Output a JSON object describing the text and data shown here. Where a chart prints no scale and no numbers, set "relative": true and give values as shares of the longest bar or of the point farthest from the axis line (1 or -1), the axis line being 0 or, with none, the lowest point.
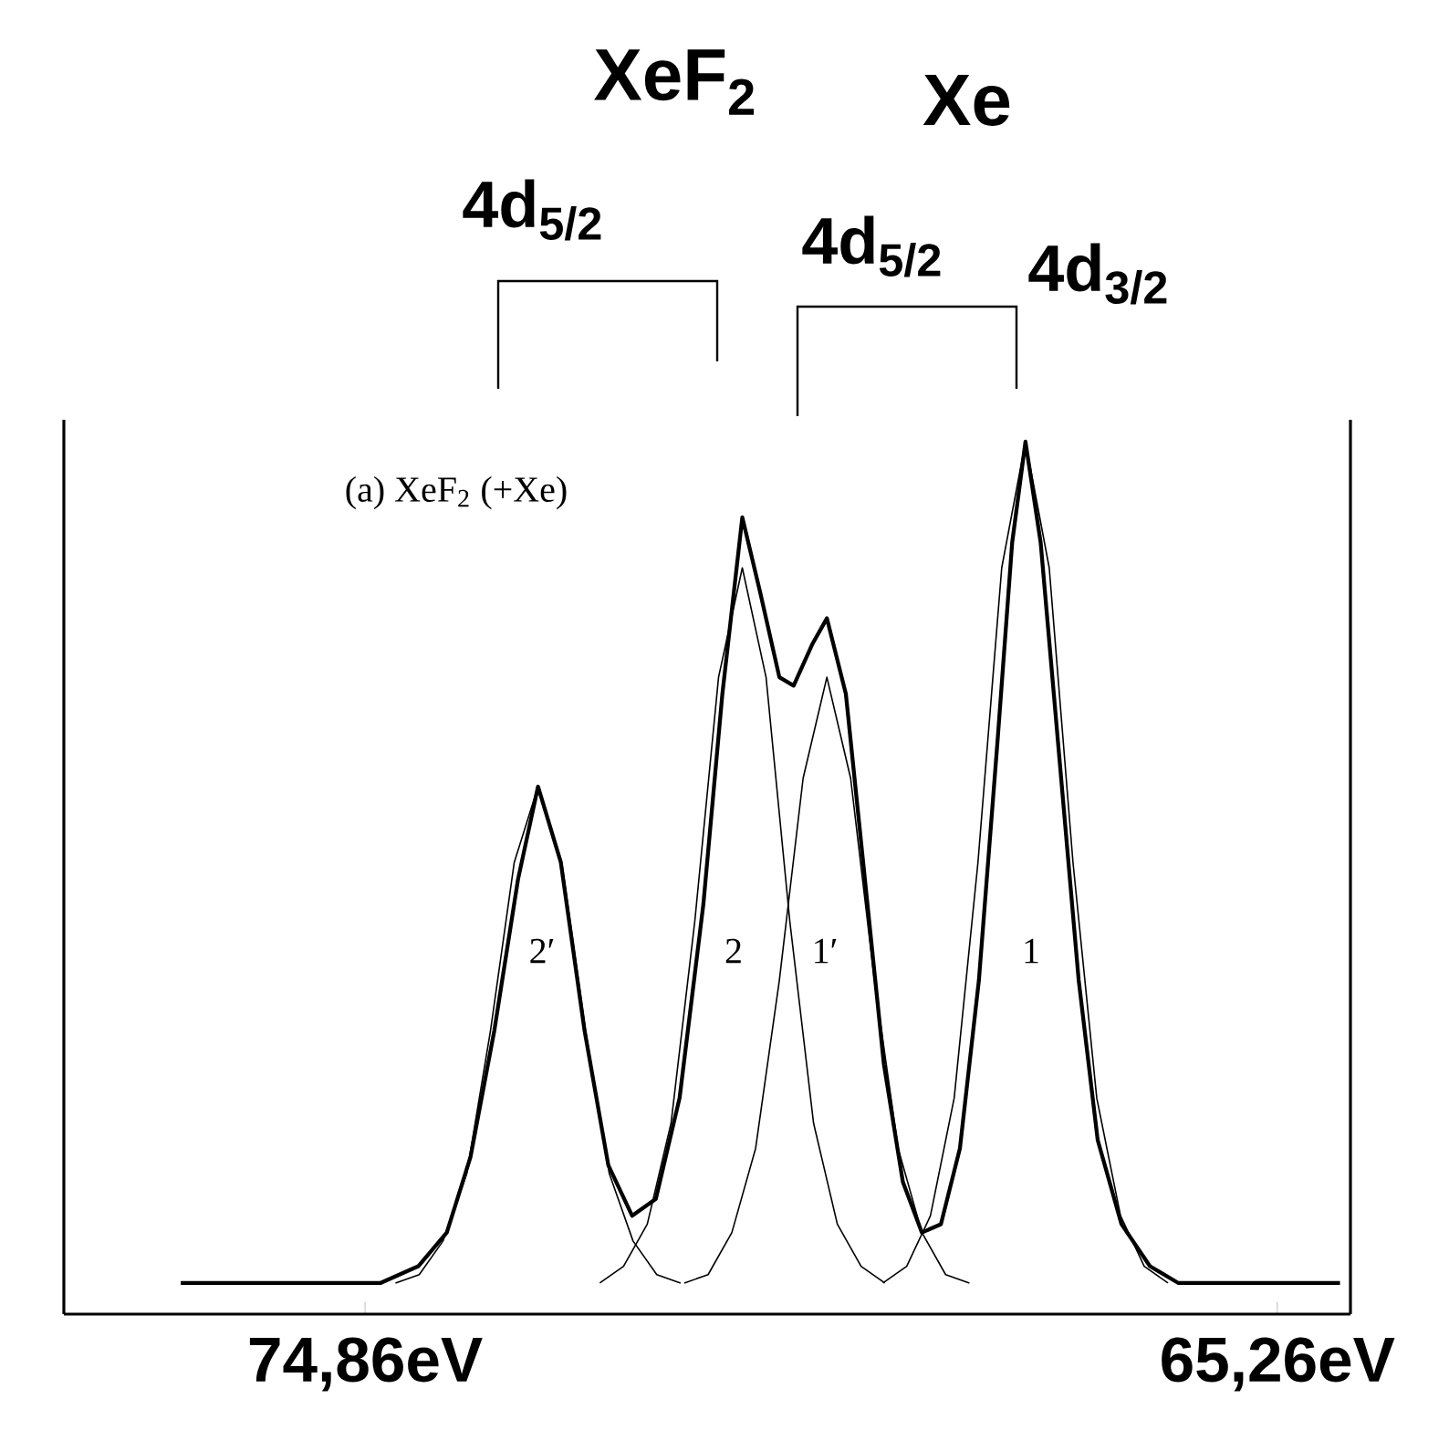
{
  "chart_data": {
    "type": "line",
    "relative": true,
    "tick_labels": "x",
    "xlim": [
      78.03,
      64.49
    ],
    "xticks": [
      {
        "value": 74.86,
        "label": "74,86eV"
      },
      {
        "value": 65.26,
        "label": "65,26eV"
      }
    ],
    "annotations": [
      "(a) XeF$_{2}$ (+Xe)",
      "2′",
      "2",
      "1′",
      "1",
      "XeF$_{2}$",
      "Xe",
      "4d$_{5/2}$",
      "4d$_{5/2}$",
      "4d$_{3/2}$"
    ],
    "series": [
      {
        "color": "#000000",
        "x": [
          76.8,
          74.7,
          74.3,
          74.0,
          73.75,
          73.5,
          73.25,
          73.04,
          72.8,
          72.55,
          72.3,
          72.05,
          71.8,
          71.55,
          71.3,
          71.1,
          70.89,
          70.7,
          70.5,
          70.35,
          70.15,
          70.0,
          69.8,
          69.6,
          69.4,
          69.2,
          69.0,
          68.8,
          68.6,
          68.4,
          68.2,
          68.05,
          67.91,
          67.75,
          67.55,
          67.35,
          67.15,
          66.9,
          66.6,
          66.3,
          64.6
        ],
        "values": [
          0.0,
          0.0,
          0.02,
          0.06,
          0.15,
          0.3,
          0.48,
          0.59,
          0.5,
          0.3,
          0.14,
          0.08,
          0.1,
          0.22,
          0.45,
          0.7,
          0.91,
          0.82,
          0.72,
          0.71,
          0.76,
          0.79,
          0.7,
          0.48,
          0.26,
          0.12,
          0.06,
          0.07,
          0.16,
          0.36,
          0.65,
          0.88,
          1.0,
          0.88,
          0.62,
          0.36,
          0.17,
          0.07,
          0.02,
          0.0,
          0.0
        ]
      },
      {
        "color": "#000000",
        "x": [
          74.54,
          74.29,
          74.04,
          73.79,
          73.54,
          73.29,
          73.04,
          72.79,
          72.54,
          72.29,
          72.04,
          71.79,
          71.54
        ],
        "values": [
          0,
          0.01,
          0.05,
          0.13,
          0.3,
          0.5,
          0.59,
          0.5,
          0.3,
          0.13,
          0.05,
          0.01,
          0
        ]
      },
      {
        "color": "#000000",
        "x": [
          72.39,
          72.14,
          71.89,
          71.64,
          71.39,
          71.14,
          70.89,
          70.64,
          70.39,
          70.14,
          69.89,
          69.64,
          69.39
        ],
        "values": [
          0,
          0.02,
          0.07,
          0.19,
          0.43,
          0.72,
          0.85,
          0.72,
          0.43,
          0.19,
          0.07,
          0.02,
          0
        ]
      },
      {
        "color": "#000000",
        "x": [
          71.5,
          71.25,
          71.0,
          70.75,
          70.5,
          70.25,
          70.0,
          69.75,
          69.5,
          69.25,
          69.0,
          68.75,
          68.5
        ],
        "values": [
          0,
          0.01,
          0.06,
          0.16,
          0.36,
          0.6,
          0.72,
          0.6,
          0.36,
          0.16,
          0.06,
          0.01,
          0
        ]
      },
      {
        "color": "#000000",
        "x": [
          69.41,
          69.16,
          68.91,
          68.66,
          68.41,
          68.16,
          67.91,
          67.66,
          67.41,
          67.16,
          66.91,
          66.66,
          66.41
        ],
        "values": [
          0,
          0.02,
          0.08,
          0.22,
          0.5,
          0.85,
          1,
          0.85,
          0.5,
          0.22,
          0.08,
          0.02,
          0
        ]
      }
    ]
  }
}
